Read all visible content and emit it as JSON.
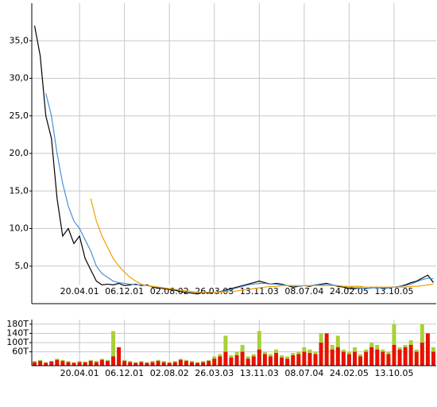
{
  "chart_data": [
    {
      "type": "line",
      "categories": [
        null,
        null,
        null,
        null,
        null,
        null,
        null,
        null,
        "20.04.01",
        null,
        null,
        null,
        null,
        null,
        null,
        null,
        "06.12.01",
        null,
        null,
        null,
        null,
        null,
        null,
        null,
        "02.08.02",
        null,
        null,
        null,
        null,
        null,
        null,
        null,
        "26.03.03",
        null,
        null,
        null,
        null,
        null,
        null,
        null,
        "13.11.03",
        null,
        null,
        null,
        null,
        null,
        null,
        null,
        "08.07.04",
        null,
        null,
        null,
        null,
        null,
        null,
        null,
        "24.02.05",
        null,
        null,
        null,
        null,
        null,
        null,
        null,
        "13.10.05",
        null,
        null,
        null,
        null,
        null,
        null,
        null
      ],
      "series": [
        {
          "color": "#000000",
          "values": [
            37,
            33,
            25,
            22,
            14,
            9,
            10,
            8,
            9,
            6,
            4.5,
            3,
            2.5,
            2.6,
            2.5,
            2.7,
            2.4,
            2.5,
            2.6,
            2.4,
            2.5,
            2.2,
            2.1,
            2.0,
            1.9,
            1.8,
            1.6,
            1.5,
            1.4,
            1.3,
            1.5,
            1.4,
            1.5,
            1.6,
            1.8,
            2.0,
            2.2,
            2.4,
            2.6,
            2.8,
            3.0,
            2.8,
            2.6,
            2.7,
            2.6,
            2.4,
            2.2,
            2.3,
            2.4,
            2.3,
            2.5,
            2.6,
            2.7,
            2.5,
            2.3,
            2.2,
            2.0,
            2.0,
            2.1,
            2.0,
            2.1,
            2.2,
            2.0,
            2.1,
            2.2,
            2.3,
            2.5,
            2.8,
            3.0,
            3.4,
            3.8,
            2.8
          ]
        },
        {
          "color": "#4a8fd6",
          "values": [
            null,
            null,
            28,
            25,
            20,
            16,
            13,
            11,
            10,
            8.5,
            7,
            5,
            4,
            3.5,
            3,
            2.8,
            2.7,
            2.6,
            2.5,
            2.5,
            2.4,
            2.3,
            2.2,
            2.1,
            2.0,
            1.9,
            1.8,
            1.7,
            1.6,
            1.5,
            1.5,
            1.5,
            1.5,
            1.6,
            1.7,
            1.9,
            2.1,
            2.3,
            2.5,
            2.6,
            2.7,
            2.7,
            2.6,
            2.6,
            2.5,
            2.4,
            2.4,
            2.3,
            2.4,
            2.4,
            2.5,
            2.5,
            2.6,
            2.5,
            2.4,
            2.3,
            2.2,
            2.1,
            2.1,
            2.0,
            2.1,
            2.1,
            2.1,
            2.1,
            2.2,
            2.3,
            2.4,
            2.6,
            2.9,
            3.2,
            3.4,
            3.3
          ]
        },
        {
          "color": "#f0a000",
          "values": [
            null,
            null,
            null,
            null,
            null,
            null,
            null,
            null,
            null,
            null,
            14,
            11,
            9,
            7.5,
            6,
            5,
            4.2,
            3.5,
            3.0,
            2.6,
            2.4,
            2.3,
            2.2,
            2.1,
            2.0,
            1.9,
            1.8,
            1.7,
            1.6,
            1.5,
            1.5,
            1.5,
            1.5,
            1.5,
            1.6,
            1.6,
            1.7,
            1.8,
            1.9,
            2.0,
            2.1,
            2.2,
            2.3,
            2.3,
            2.4,
            2.4,
            2.4,
            2.4,
            2.4,
            2.4,
            2.4,
            2.4,
            2.4,
            2.4,
            2.4,
            2.3,
            2.3,
            2.3,
            2.3,
            2.2,
            2.2,
            2.2,
            2.2,
            2.2,
            2.2,
            2.2,
            2.2,
            2.3,
            2.3,
            2.4,
            2.5,
            2.6
          ]
        }
      ],
      "ylim": [
        0,
        40
      ],
      "yticks": [
        {
          "value": 5,
          "label": "5,0"
        },
        {
          "value": 10,
          "label": "10,0"
        },
        {
          "value": 15,
          "label": "15,0"
        },
        {
          "value": 20,
          "label": "20,0"
        },
        {
          "value": 25,
          "label": "25,0"
        },
        {
          "value": 30,
          "label": "30,0"
        },
        {
          "value": 35,
          "label": "35,0"
        }
      ],
      "grid": true
    },
    {
      "type": "bar",
      "categories": [
        null,
        null,
        null,
        null,
        null,
        null,
        null,
        null,
        "20.04.01",
        null,
        null,
        null,
        null,
        null,
        null,
        null,
        "06.12.01",
        null,
        null,
        null,
        null,
        null,
        null,
        null,
        "02.08.02",
        null,
        null,
        null,
        null,
        null,
        null,
        null,
        "26.03.03",
        null,
        null,
        null,
        null,
        null,
        null,
        null,
        "13.11.03",
        null,
        null,
        null,
        null,
        null,
        null,
        null,
        "08.07.04",
        null,
        null,
        null,
        null,
        null,
        null,
        null,
        "24.02.05",
        null,
        null,
        null,
        null,
        null,
        null,
        null,
        "13.10.05",
        null,
        null,
        null,
        null,
        null,
        null,
        null
      ],
      "series": [
        {
          "color": "#a8d038",
          "values": [
            20,
            25,
            15,
            20,
            30,
            25,
            20,
            15,
            20,
            18,
            25,
            20,
            30,
            25,
            150,
            30,
            25,
            20,
            15,
            20,
            15,
            20,
            25,
            20,
            15,
            20,
            30,
            25,
            20,
            15,
            20,
            25,
            40,
            50,
            130,
            45,
            60,
            90,
            40,
            50,
            150,
            60,
            50,
            70,
            45,
            40,
            55,
            60,
            80,
            70,
            60,
            140,
            110,
            90,
            130,
            70,
            60,
            80,
            50,
            70,
            100,
            90,
            70,
            60,
            180,
            80,
            90,
            110,
            70,
            180,
            100,
            80
          ]
        },
        {
          "color": "#e81000",
          "values": [
            15,
            20,
            12,
            18,
            25,
            20,
            15,
            12,
            15,
            14,
            20,
            15,
            25,
            20,
            40,
            80,
            20,
            15,
            12,
            15,
            12,
            15,
            20,
            15,
            12,
            15,
            25,
            20,
            15,
            12,
            15,
            20,
            30,
            40,
            60,
            35,
            45,
            60,
            30,
            40,
            70,
            50,
            40,
            55,
            35,
            30,
            45,
            50,
            60,
            55,
            50,
            100,
            140,
            70,
            80,
            60,
            50,
            60,
            40,
            60,
            80,
            70,
            60,
            50,
            90,
            70,
            80,
            90,
            60,
            100,
            140,
            60
          ]
        }
      ],
      "ylim": [
        0,
        200
      ],
      "yticks": [
        {
          "value": 60,
          "label": "60T"
        },
        {
          "value": 100,
          "label": "100T"
        },
        {
          "value": 140,
          "label": "140T"
        },
        {
          "value": 180,
          "label": "180T"
        }
      ],
      "grid": true
    }
  ]
}
